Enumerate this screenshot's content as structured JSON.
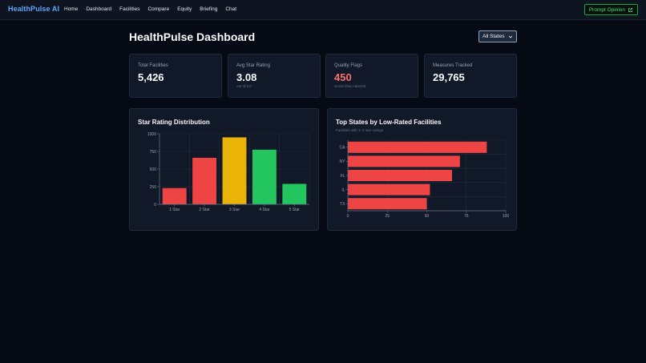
{
  "header": {
    "brand": "HealthPulse AI",
    "nav": [
      "Home",
      "Dashboard",
      "Facilities",
      "Compare",
      "Equity",
      "Briefing",
      "Chat"
    ],
    "prompt_button": "Prompt Opinion"
  },
  "page": {
    "title": "HealthPulse Dashboard",
    "state_select": "All States"
  },
  "stats": [
    {
      "label": "Total Facilities",
      "value": "5,426",
      "sub": ""
    },
    {
      "label": "Avg Star Rating",
      "value": "3.08",
      "sub": "out of 5.0"
    },
    {
      "label": "Quality Flags",
      "value": "450",
      "sub": "worse than national"
    },
    {
      "label": "Measures Tracked",
      "value": "29,765",
      "sub": ""
    }
  ],
  "colors": {
    "red": "#ef4444",
    "yellow": "#eab308",
    "green": "#22c55e",
    "flag": "#f87171"
  },
  "chart_data": [
    {
      "type": "bar",
      "title": "Star Rating Distribution",
      "categories": [
        "1 Star",
        "2 Star",
        "3 Star",
        "4 Star",
        "5 Star"
      ],
      "values": [
        230,
        660,
        950,
        775,
        290
      ],
      "colors": [
        "#ef4444",
        "#ef4444",
        "#eab308",
        "#22c55e",
        "#22c55e"
      ],
      "yticks": [
        "0",
        "250",
        "500",
        "750",
        "1000"
      ],
      "ylim": [
        0,
        1000
      ],
      "grid": true
    },
    {
      "type": "bar",
      "orientation": "horizontal",
      "title": "Top States by Low-Rated Facilities",
      "subtitle": "Facilities with 1–2 star ratings",
      "categories": [
        "CA",
        "NY",
        "FL",
        "IL",
        "TX"
      ],
      "values": [
        88,
        71,
        66,
        52,
        50
      ],
      "color": "#ef4444",
      "xticks": [
        "0",
        "25",
        "50",
        "75",
        "100"
      ],
      "xlim": [
        0,
        100
      ],
      "grid": true
    }
  ]
}
